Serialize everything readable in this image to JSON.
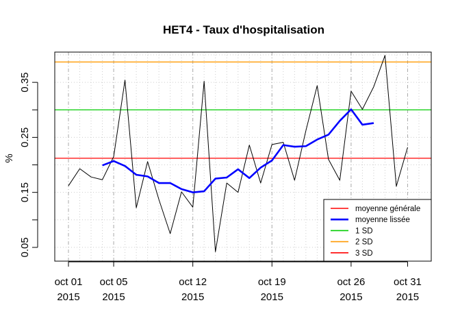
{
  "chart_data": {
    "type": "line",
    "title": "HET4 - Taux d'hospitalisation",
    "ylabel": "%",
    "xlabel": "",
    "ylim": [
      0.025,
      0.405
    ],
    "xlim": [
      0,
      31
    ],
    "y_ticks": [
      0.05,
      0.15,
      0.25,
      0.35
    ],
    "y_tick_labels": [
      "0.05",
      "0.15",
      "0.25",
      "0.35"
    ],
    "x_ticks": [
      {
        "x": 0,
        "line1": "oct 01",
        "line2": "2015"
      },
      {
        "x": 4,
        "line1": "oct 05",
        "line2": "2015"
      },
      {
        "x": 11,
        "line1": "oct 12",
        "line2": "2015"
      },
      {
        "x": 18,
        "line1": "oct 19",
        "line2": "2015"
      },
      {
        "x": 25,
        "line1": "oct 26",
        "line2": "2015"
      },
      {
        "x": 30,
        "line1": "oct 31",
        "line2": "2015"
      }
    ],
    "grid": true,
    "legend_position": "bottom-right",
    "series": [
      {
        "name": "",
        "color": "#000000",
        "style": "thin",
        "x": [
          0,
          1,
          2,
          3,
          4,
          5,
          6,
          7,
          8,
          9,
          10,
          11,
          12,
          13,
          14,
          15,
          16,
          17,
          18,
          19,
          20,
          21,
          22,
          23,
          24,
          25,
          26,
          27,
          28,
          29,
          30
        ],
        "values": [
          0.162,
          0.193,
          0.178,
          0.173,
          0.215,
          0.354,
          0.122,
          0.206,
          0.137,
          0.075,
          0.151,
          0.123,
          0.352,
          0.042,
          0.167,
          0.15,
          0.236,
          0.167,
          0.237,
          0.241,
          0.172,
          0.262,
          0.344,
          0.21,
          0.172,
          0.334,
          0.301,
          0.342,
          0.399,
          0.161,
          0.232
        ]
      },
      {
        "name": "moyenne lissée",
        "color": "#0000ff",
        "style": "thick",
        "x": [
          3,
          4,
          5,
          6,
          7,
          8,
          9,
          10,
          11,
          12,
          13,
          14,
          15,
          16,
          17,
          18,
          19,
          20,
          21,
          22,
          23,
          24,
          25,
          26,
          27
        ],
        "values": [
          0.199,
          0.207,
          0.198,
          0.182,
          0.179,
          0.167,
          0.167,
          0.156,
          0.15,
          0.152,
          0.175,
          0.177,
          0.192,
          0.176,
          0.195,
          0.208,
          0.236,
          0.233,
          0.234,
          0.246,
          0.255,
          0.28,
          0.301,
          0.273,
          0.276
        ]
      }
    ],
    "hlines": [
      {
        "name": "moyenne générale",
        "value": 0.212,
        "color": "#ff0000"
      },
      {
        "name": "1 SD",
        "value": 0.3,
        "color": "#00cc00"
      },
      {
        "name": "2 SD",
        "value": 0.387,
        "color": "#ff9900"
      }
    ],
    "legend": [
      {
        "label": "moyenne générale",
        "color": "#ff0000",
        "thick": false
      },
      {
        "label": "moyenne lissée",
        "color": "#0000ff",
        "thick": true
      },
      {
        "label": "1 SD",
        "color": "#00cc00",
        "thick": false
      },
      {
        "label": "2 SD",
        "color": "#ff9900",
        "thick": false
      },
      {
        "label": "3 SD",
        "color": "#ff0000",
        "thick": false
      }
    ]
  }
}
